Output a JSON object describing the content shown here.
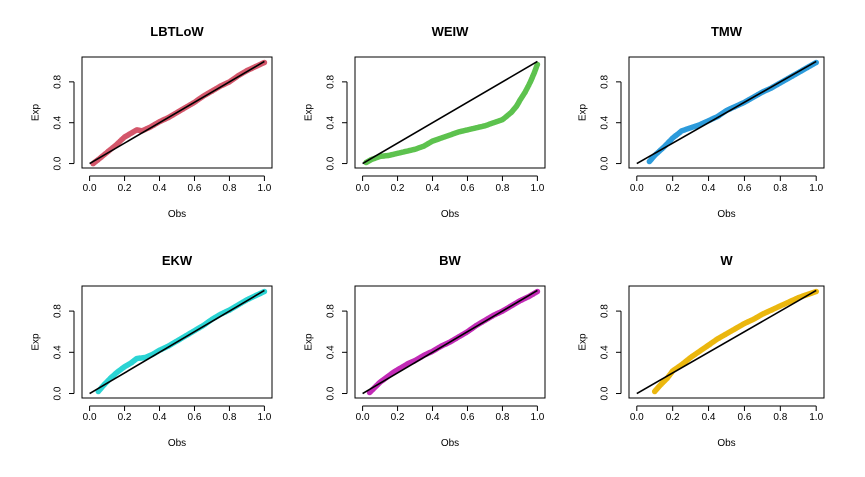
{
  "chart_data": [
    {
      "type": "scatter",
      "title": "LBTLoW",
      "xlabel": "Obs",
      "ylabel": "Exp",
      "xlim": [
        0,
        1
      ],
      "ylim": [
        0,
        1
      ],
      "xticks": [
        "0.0",
        "0.2",
        "0.4",
        "0.6",
        "0.8",
        "1.0"
      ],
      "yticks": [
        "0.0",
        "0.4",
        "0.8"
      ],
      "color": "#D4576B",
      "reference_line": [
        [
          0,
          0
        ],
        [
          1,
          1
        ]
      ],
      "series": [
        {
          "name": "LBTLoW",
          "x": [
            0.02,
            0.05,
            0.1,
            0.15,
            0.2,
            0.23,
            0.27,
            0.3,
            0.35,
            0.4,
            0.45,
            0.5,
            0.55,
            0.6,
            0.65,
            0.7,
            0.75,
            0.8,
            0.85,
            0.9,
            0.95,
            1.0
          ],
          "y": [
            0.0,
            0.04,
            0.11,
            0.18,
            0.26,
            0.29,
            0.33,
            0.32,
            0.36,
            0.41,
            0.45,
            0.5,
            0.55,
            0.6,
            0.66,
            0.71,
            0.76,
            0.8,
            0.86,
            0.91,
            0.95,
            0.99
          ]
        }
      ]
    },
    {
      "type": "scatter",
      "title": "WEIW",
      "xlabel": "Obs",
      "ylabel": "Exp",
      "xlim": [
        0,
        1
      ],
      "ylim": [
        0,
        1
      ],
      "xticks": [
        "0.0",
        "0.2",
        "0.4",
        "0.6",
        "0.8",
        "1.0"
      ],
      "yticks": [
        "0.0",
        "0.4",
        "0.8"
      ],
      "color": "#5DC24E",
      "reference_line": [
        [
          0,
          0
        ],
        [
          1,
          1
        ]
      ],
      "series": [
        {
          "name": "WEIW",
          "x": [
            0.02,
            0.05,
            0.1,
            0.15,
            0.2,
            0.25,
            0.3,
            0.35,
            0.4,
            0.45,
            0.5,
            0.55,
            0.6,
            0.65,
            0.7,
            0.75,
            0.8,
            0.85,
            0.88,
            0.9,
            0.93,
            0.96,
            0.98,
            1.0
          ],
          "y": [
            0.01,
            0.04,
            0.07,
            0.08,
            0.1,
            0.12,
            0.14,
            0.17,
            0.22,
            0.25,
            0.28,
            0.31,
            0.33,
            0.35,
            0.37,
            0.4,
            0.43,
            0.5,
            0.56,
            0.62,
            0.7,
            0.8,
            0.88,
            0.97
          ]
        }
      ]
    },
    {
      "type": "scatter",
      "title": "TMW",
      "xlabel": "Obs",
      "ylabel": "Exp",
      "xlim": [
        0,
        1
      ],
      "ylim": [
        0,
        1
      ],
      "xticks": [
        "0.0",
        "0.2",
        "0.4",
        "0.6",
        "0.8",
        "1.0"
      ],
      "yticks": [
        "0.0",
        "0.4",
        "0.8"
      ],
      "color": "#2D9BDB",
      "reference_line": [
        [
          0,
          0
        ],
        [
          1,
          1
        ]
      ],
      "series": [
        {
          "name": "TMW",
          "x": [
            0.07,
            0.1,
            0.15,
            0.2,
            0.25,
            0.3,
            0.35,
            0.4,
            0.45,
            0.5,
            0.55,
            0.6,
            0.65,
            0.7,
            0.75,
            0.8,
            0.85,
            0.9,
            0.95,
            1.0
          ],
          "y": [
            0.02,
            0.08,
            0.16,
            0.25,
            0.32,
            0.35,
            0.38,
            0.42,
            0.46,
            0.52,
            0.56,
            0.6,
            0.65,
            0.7,
            0.74,
            0.79,
            0.84,
            0.89,
            0.94,
            0.99
          ]
        }
      ]
    },
    {
      "type": "scatter",
      "title": "EKW",
      "xlabel": "Obs",
      "ylabel": "Exp",
      "xlim": [
        0,
        1
      ],
      "ylim": [
        0,
        1
      ],
      "xticks": [
        "0.0",
        "0.2",
        "0.4",
        "0.6",
        "0.8",
        "1.0"
      ],
      "yticks": [
        "0.0",
        "0.4",
        "0.8"
      ],
      "color": "#2BD4D4",
      "reference_line": [
        [
          0,
          0
        ],
        [
          1,
          1
        ]
      ],
      "series": [
        {
          "name": "EKW",
          "x": [
            0.05,
            0.08,
            0.12,
            0.16,
            0.2,
            0.24,
            0.27,
            0.32,
            0.36,
            0.4,
            0.45,
            0.5,
            0.55,
            0.6,
            0.65,
            0.7,
            0.75,
            0.8,
            0.85,
            0.9,
            0.95,
            1.0
          ],
          "y": [
            0.02,
            0.08,
            0.15,
            0.21,
            0.26,
            0.3,
            0.34,
            0.35,
            0.38,
            0.42,
            0.46,
            0.51,
            0.56,
            0.61,
            0.66,
            0.72,
            0.77,
            0.81,
            0.86,
            0.91,
            0.95,
            0.99
          ]
        }
      ]
    },
    {
      "type": "scatter",
      "title": "BW",
      "xlabel": "Obs",
      "ylabel": "Exp",
      "xlim": [
        0,
        1
      ],
      "ylim": [
        0,
        1
      ],
      "xticks": [
        "0.0",
        "0.2",
        "0.4",
        "0.6",
        "0.8",
        "1.0"
      ],
      "yticks": [
        "0.0",
        "0.4",
        "0.8"
      ],
      "color": "#C22BB6",
      "reference_line": [
        [
          0,
          0
        ],
        [
          1,
          1
        ]
      ],
      "series": [
        {
          "name": "BW",
          "x": [
            0.04,
            0.07,
            0.1,
            0.14,
            0.18,
            0.22,
            0.26,
            0.3,
            0.35,
            0.4,
            0.45,
            0.5,
            0.55,
            0.6,
            0.65,
            0.7,
            0.75,
            0.8,
            0.85,
            0.9,
            0.95,
            1.0
          ],
          "y": [
            0.01,
            0.06,
            0.11,
            0.16,
            0.21,
            0.25,
            0.29,
            0.32,
            0.37,
            0.41,
            0.46,
            0.5,
            0.55,
            0.6,
            0.66,
            0.71,
            0.76,
            0.8,
            0.85,
            0.9,
            0.94,
            0.99
          ]
        }
      ]
    },
    {
      "type": "scatter",
      "title": "W",
      "xlabel": "Obs",
      "ylabel": "Exp",
      "xlim": [
        0,
        1
      ],
      "ylim": [
        0,
        1
      ],
      "xticks": [
        "0.0",
        "0.2",
        "0.4",
        "0.6",
        "0.8",
        "1.0"
      ],
      "yticks": [
        "0.0",
        "0.4",
        "0.8"
      ],
      "color": "#EBB70E",
      "reference_line": [
        [
          0,
          0
        ],
        [
          1,
          1
        ]
      ],
      "series": [
        {
          "name": "W",
          "x": [
            0.1,
            0.13,
            0.17,
            0.2,
            0.25,
            0.3,
            0.35,
            0.4,
            0.45,
            0.5,
            0.55,
            0.6,
            0.65,
            0.7,
            0.75,
            0.8,
            0.85,
            0.9,
            0.95,
            1.0
          ],
          "y": [
            0.02,
            0.08,
            0.15,
            0.22,
            0.28,
            0.35,
            0.41,
            0.47,
            0.53,
            0.58,
            0.63,
            0.68,
            0.72,
            0.77,
            0.81,
            0.85,
            0.89,
            0.93,
            0.96,
            0.99
          ]
        }
      ]
    }
  ]
}
